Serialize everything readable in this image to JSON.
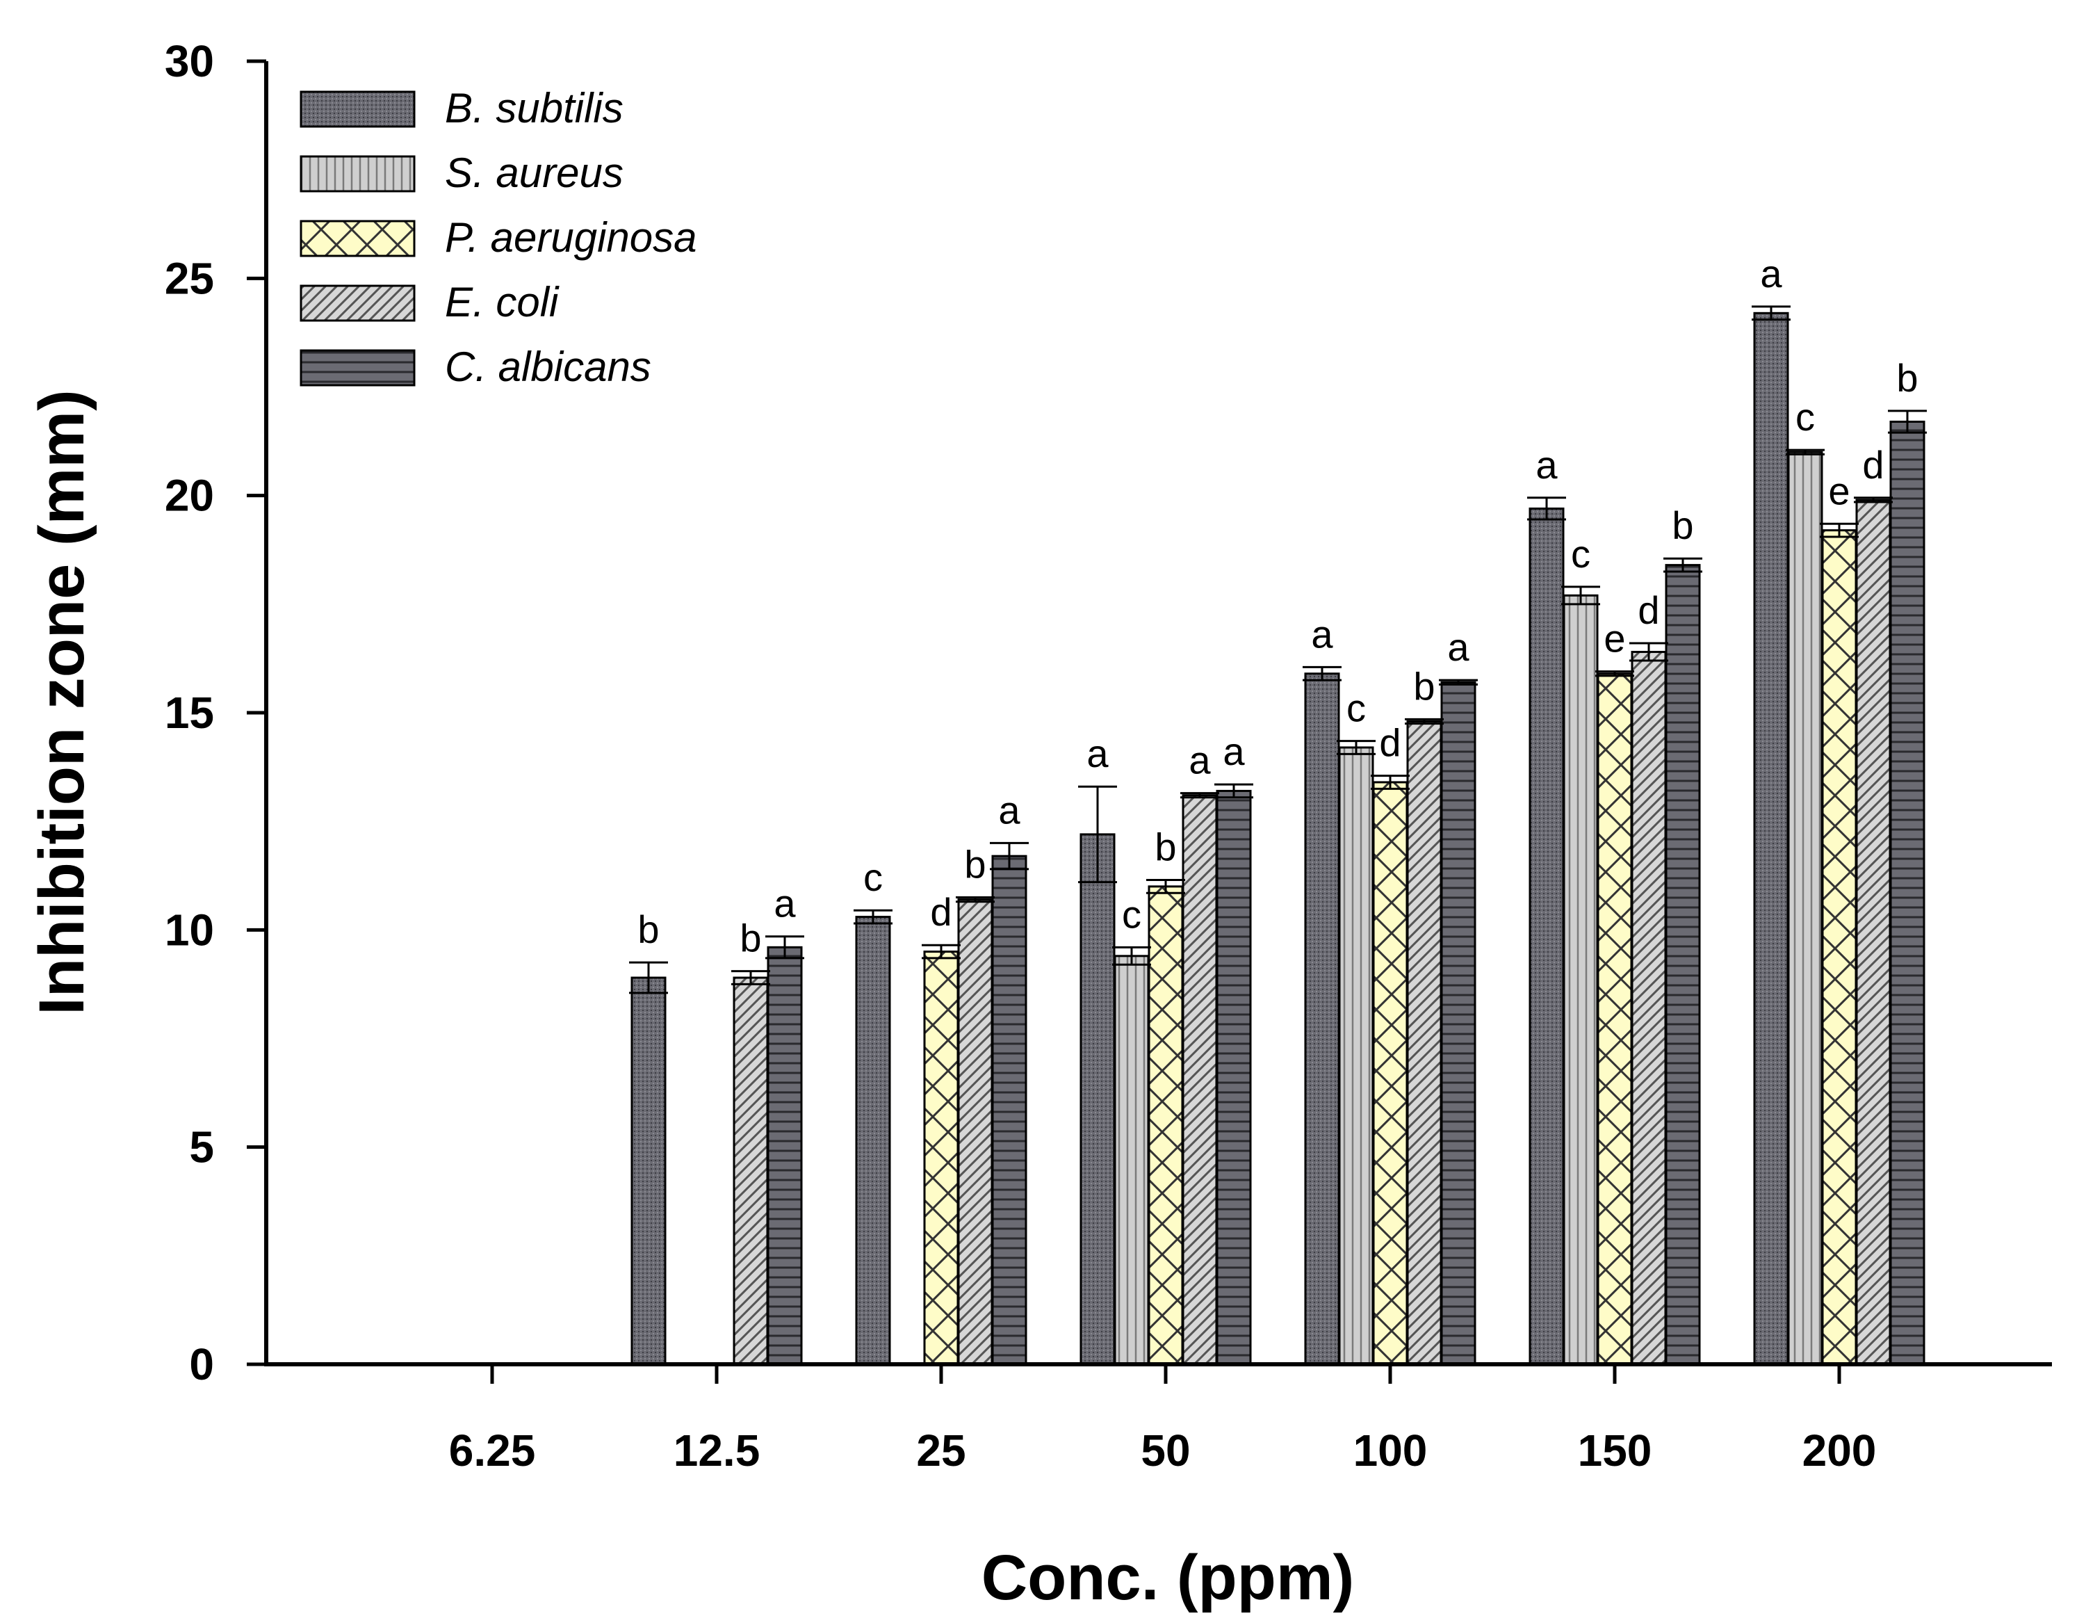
{
  "chart_data": {
    "type": "bar",
    "title": "",
    "xlabel": "Conc. (ppm)",
    "ylabel": "Inhibition zone (mm)",
    "ylim": [
      0,
      30
    ],
    "yticks": [
      "0",
      "5",
      "10",
      "15",
      "20",
      "25",
      "30"
    ],
    "categories": [
      "6.25",
      "12.5",
      "25",
      "50",
      "100",
      "150",
      "200"
    ],
    "legend_position": "top-left",
    "series": [
      {
        "name": "B. subtilis",
        "pattern": "dots-dark",
        "color": "#6b6b73",
        "values": [
          null,
          8.9,
          10.3,
          12.2,
          15.9,
          19.7,
          24.2
        ],
        "errors": [
          null,
          0.35,
          0.15,
          1.1,
          0.15,
          0.25,
          0.15
        ],
        "letters": [
          "",
          "b",
          "c",
          "a",
          "a",
          "a",
          "a"
        ]
      },
      {
        "name": "S. aureus",
        "pattern": "vertical-lines",
        "color": "#c8c8c8",
        "values": [
          null,
          null,
          null,
          9.4,
          14.2,
          17.7,
          21.0
        ],
        "errors": [
          null,
          null,
          null,
          0.2,
          0.15,
          0.2,
          0.05
        ],
        "letters": [
          "",
          "",
          "",
          "c",
          "c",
          "c",
          "c"
        ]
      },
      {
        "name": "P. aeruginosa",
        "pattern": "crosshatch",
        "color": "#fefcc8",
        "values": [
          null,
          null,
          9.5,
          11.0,
          13.4,
          15.9,
          19.2
        ],
        "errors": [
          null,
          null,
          0.15,
          0.15,
          0.15,
          0.05,
          0.15
        ],
        "letters": [
          "",
          "",
          "d",
          "b",
          "d",
          "e",
          "e"
        ]
      },
      {
        "name": "E. coli",
        "pattern": "diagonal-lines",
        "color": "#bcbcbc",
        "values": [
          null,
          8.9,
          10.7,
          13.1,
          14.8,
          16.4,
          19.9
        ],
        "errors": [
          null,
          0.15,
          0.05,
          0.05,
          0.05,
          0.2,
          0.05
        ],
        "letters": [
          "",
          "b",
          "b",
          "a",
          "b",
          "d",
          "d"
        ]
      },
      {
        "name": "C. albicans",
        "pattern": "horizontal-lines",
        "color": "#6b6b73",
        "values": [
          null,
          9.6,
          11.7,
          13.2,
          15.7,
          18.4,
          21.7
        ],
        "errors": [
          null,
          0.25,
          0.3,
          0.15,
          0.05,
          0.15,
          0.25
        ],
        "letters": [
          "",
          "a",
          "a",
          "a",
          "a",
          "b",
          "b"
        ]
      }
    ]
  }
}
